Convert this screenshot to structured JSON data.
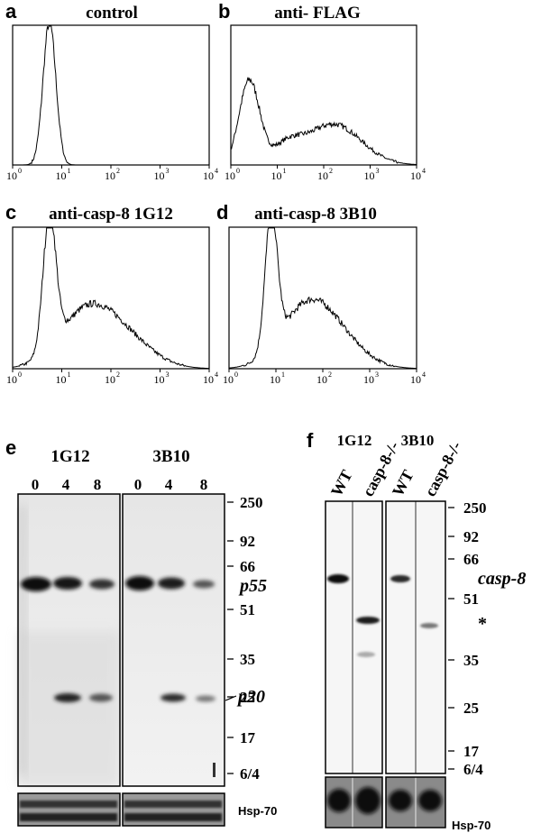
{
  "panels": {
    "a": {
      "letter": "a",
      "title": "control"
    },
    "b": {
      "letter": "b",
      "title": "anti- FLAG"
    },
    "c": {
      "letter": "c",
      "title": "anti-casp-8 1G12"
    },
    "d": {
      "letter": "d",
      "title": "anti-casp-8 3B10"
    },
    "e": {
      "letter": "e"
    },
    "f": {
      "letter": "f"
    }
  },
  "axis_ticks": [
    "10",
    "10",
    "10",
    "10",
    "10"
  ],
  "axis_exponents": [
    "0",
    "1",
    "2",
    "3",
    "4"
  ],
  "histograms": [
    {
      "panel": "a",
      "peak_decade": 0.75,
      "shape": "narrow"
    },
    {
      "panel": "b",
      "peak_decade": 0.4,
      "shape": "broad"
    },
    {
      "panel": "c",
      "peak_decade": 0.75,
      "shape": "tailed"
    },
    {
      "panel": "d",
      "peak_decade": 0.9,
      "shape": "tailed"
    }
  ],
  "blot_e": {
    "group_labels": [
      "1G12",
      "3B10"
    ],
    "lane_labels": [
      "0",
      "4",
      "8",
      "0",
      "4",
      "8"
    ],
    "markers": [
      "250",
      "92",
      "66",
      "51",
      "35",
      "25",
      "17",
      "6/4"
    ],
    "bands": {
      "p55": "p55",
      "p20": "p20"
    },
    "loading": "Hsp-70"
  },
  "blot_f": {
    "group_labels": [
      "1G12",
      "3B10"
    ],
    "lane_labels": [
      "WT",
      "casp-8-/-",
      "WT",
      "casp-8-/-"
    ],
    "markers": [
      "250",
      "92",
      "66",
      "51",
      "35",
      "25",
      "17",
      "6/4"
    ],
    "bands": {
      "casp8": "casp-8",
      "star": "*"
    },
    "loading": "Hsp-70"
  }
}
